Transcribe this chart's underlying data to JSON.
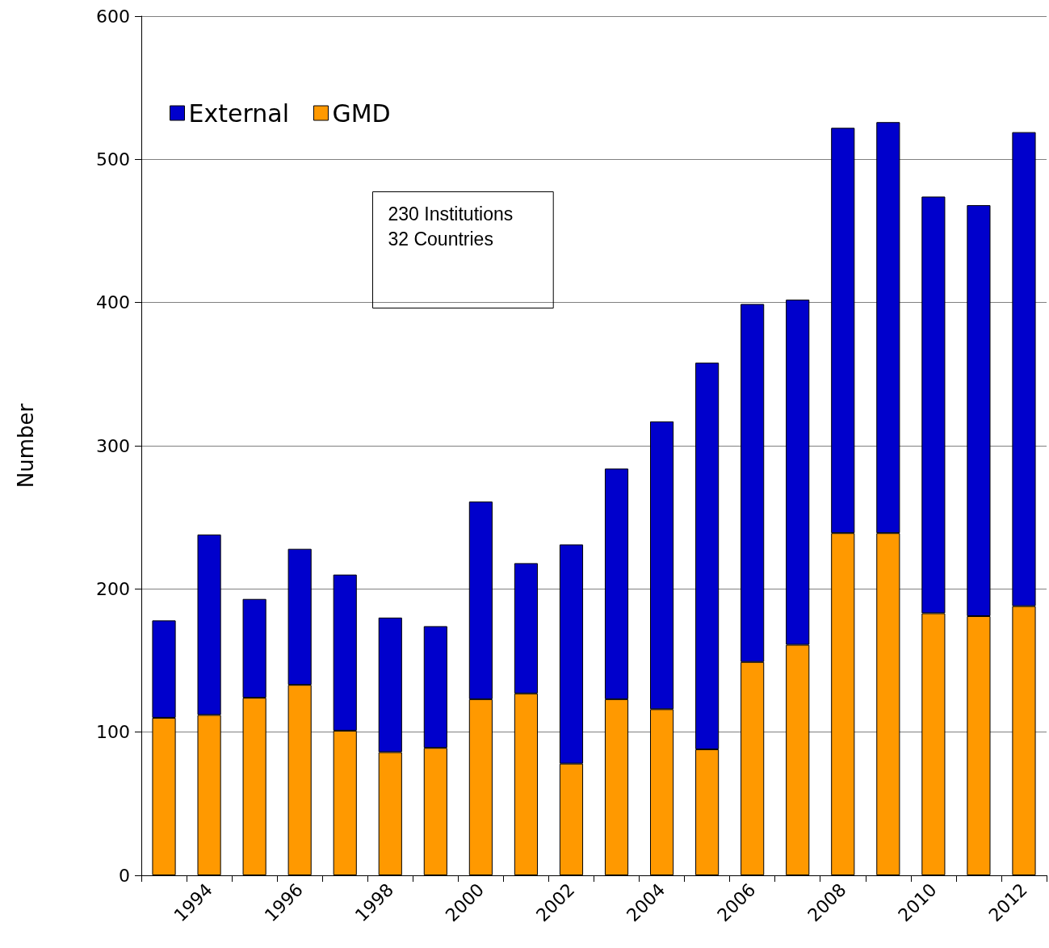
{
  "chart_data": {
    "type": "bar",
    "ylabel": "Number",
    "categories": [
      null,
      "1994",
      null,
      "1996",
      null,
      "1998",
      null,
      "2000",
      null,
      "2002",
      null,
      "2004",
      null,
      "2006",
      null,
      "2008",
      null,
      "2010",
      null,
      "2012"
    ],
    "series": [
      {
        "name": "GMD",
        "color": "#ff9900",
        "values": [
          110,
          112,
          124,
          133,
          101,
          86,
          89,
          123,
          127,
          78,
          123,
          116,
          88,
          149,
          161,
          239,
          239,
          183,
          181,
          188
        ]
      },
      {
        "name": "External",
        "color": "#0000cc",
        "values": [
          68,
          126,
          69,
          95,
          109,
          94,
          85,
          138,
          91,
          153,
          161,
          201,
          270,
          250,
          241,
          283,
          287,
          291,
          287,
          331
        ]
      }
    ],
    "stacked": true,
    "ylim": [
      0,
      600
    ],
    "yticks": [
      0,
      100,
      200,
      300,
      400,
      500,
      600
    ],
    "grid": "y",
    "legend": "top left",
    "annotations": [
      "230 Institutions",
      "32 Countries"
    ]
  }
}
